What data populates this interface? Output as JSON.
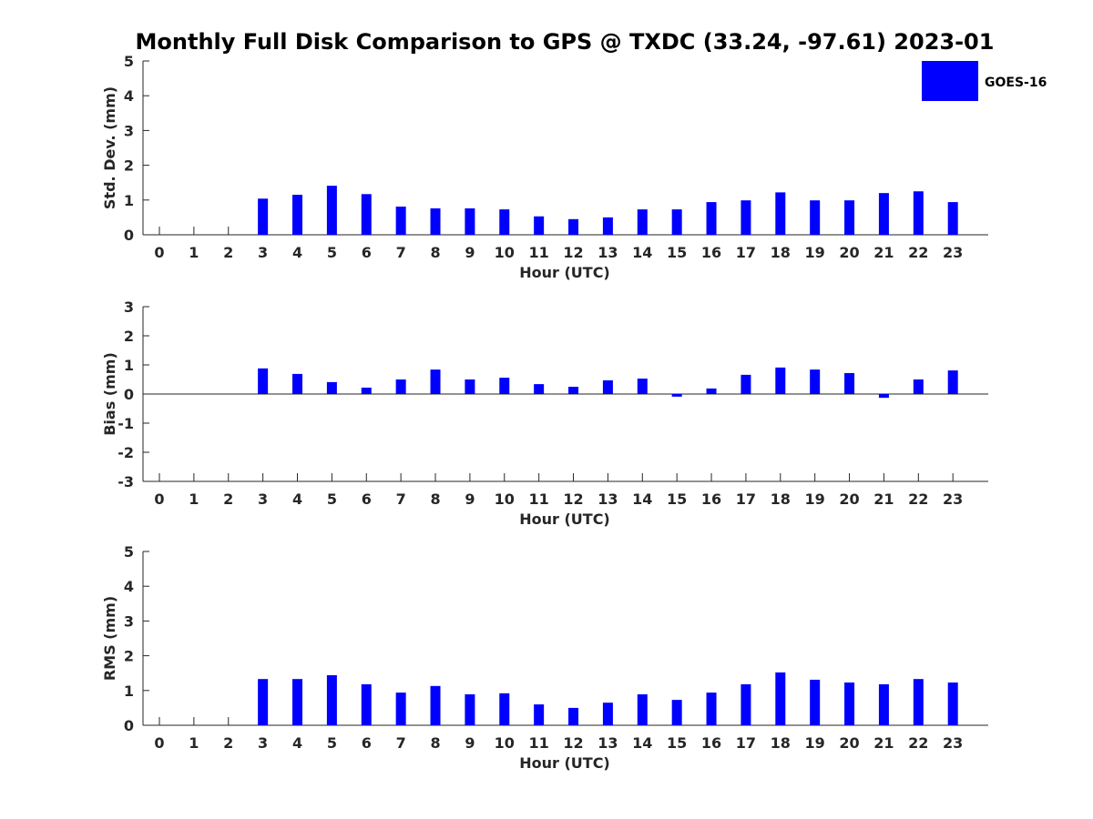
{
  "figure": {
    "title": "Monthly Full Disk Comparison to GPS @ TXDC (33.24, -97.61) 2023-01"
  },
  "colors": {
    "bar": "#0000ff",
    "axis": "#262626"
  },
  "legend": {
    "label": "GOES-16",
    "placement": "top-right"
  },
  "chart_data": [
    {
      "type": "bar",
      "id": "std",
      "title": "",
      "xlabel": "Hour (UTC)",
      "ylabel": "Std. Dev. (mm)",
      "ylim": [
        0,
        5
      ],
      "yticks": [
        "0",
        "1",
        "2",
        "3",
        "4",
        "5"
      ],
      "categories": [
        "0",
        "1",
        "2",
        "3",
        "4",
        "5",
        "6",
        "7",
        "8",
        "9",
        "10",
        "11",
        "12",
        "13",
        "14",
        "15",
        "16",
        "17",
        "18",
        "19",
        "20",
        "21",
        "22",
        "23"
      ],
      "series": [
        {
          "name": "GOES-16",
          "values": [
            null,
            null,
            null,
            1.04,
            1.15,
            1.41,
            1.17,
            0.81,
            0.76,
            0.76,
            0.73,
            0.53,
            0.45,
            0.5,
            0.73,
            0.73,
            0.94,
            0.99,
            1.22,
            0.99,
            0.99,
            1.2,
            1.25,
            0.94
          ]
        }
      ],
      "grid": false
    },
    {
      "type": "bar",
      "id": "bias",
      "title": "",
      "xlabel": "Hour (UTC)",
      "ylabel": "Bias (mm)",
      "ylim": [
        -3,
        3
      ],
      "yticks": [
        "-3",
        "-2",
        "-1",
        "0",
        "1",
        "2",
        "3"
      ],
      "categories": [
        "0",
        "1",
        "2",
        "3",
        "4",
        "5",
        "6",
        "7",
        "8",
        "9",
        "10",
        "11",
        "12",
        "13",
        "14",
        "15",
        "16",
        "17",
        "18",
        "19",
        "20",
        "21",
        "22",
        "23"
      ],
      "series": [
        {
          "name": "GOES-16",
          "values": [
            null,
            null,
            null,
            0.88,
            0.69,
            0.41,
            0.22,
            0.5,
            0.84,
            0.5,
            0.56,
            0.34,
            0.25,
            0.47,
            0.53,
            -0.09,
            0.19,
            0.66,
            0.91,
            0.84,
            0.72,
            -0.13,
            0.5,
            0.81
          ]
        }
      ],
      "grid": false
    },
    {
      "type": "bar",
      "id": "rms",
      "title": "",
      "xlabel": "Hour (UTC)",
      "ylabel": "RMS (mm)",
      "ylim": [
        0,
        5
      ],
      "yticks": [
        "0",
        "1",
        "2",
        "3",
        "4",
        "5"
      ],
      "categories": [
        "0",
        "1",
        "2",
        "3",
        "4",
        "5",
        "6",
        "7",
        "8",
        "9",
        "10",
        "11",
        "12",
        "13",
        "14",
        "15",
        "16",
        "17",
        "18",
        "19",
        "20",
        "21",
        "22",
        "23"
      ],
      "series": [
        {
          "name": "GOES-16",
          "values": [
            null,
            null,
            null,
            1.33,
            1.33,
            1.44,
            1.18,
            0.94,
            1.13,
            0.89,
            0.92,
            0.6,
            0.5,
            0.65,
            0.89,
            0.73,
            0.94,
            1.18,
            1.52,
            1.31,
            1.23,
            1.18,
            1.33,
            1.23
          ]
        }
      ],
      "grid": false
    }
  ]
}
